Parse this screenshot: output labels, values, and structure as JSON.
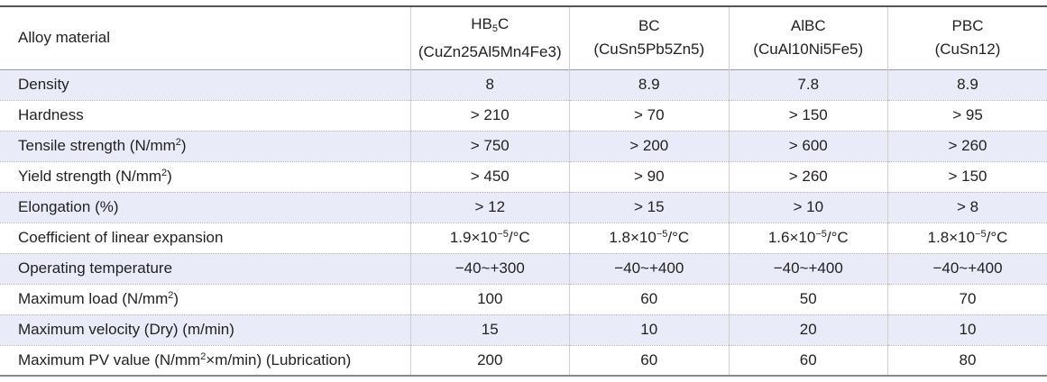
{
  "table": {
    "header": [
      "Alloy material",
      {
        "name": [
          {
            "text": "HB"
          },
          {
            "text": "5",
            "style": "sub"
          },
          {
            "text": "C"
          }
        ],
        "composition": "(CuZn25Al5Mn4Fe3)"
      },
      {
        "name": "BC",
        "composition": "(CuSn5Pb5Zn5)"
      },
      {
        "name": "AlBC",
        "composition": "(CuAl10Ni5Fe5)"
      },
      {
        "name": "PBC",
        "composition": "(CuSn12)"
      }
    ],
    "rows": [
      [
        "Density",
        "8",
        "8.9",
        "7.8",
        "8.9"
      ],
      [
        "Hardness",
        "> 210",
        "> 70",
        "> 150",
        "> 95"
      ],
      [
        [
          {
            "text": "Tensile strength (N/mm"
          },
          {
            "text": "2",
            "style": "sup"
          },
          {
            "text": ")"
          }
        ],
        "> 750",
        "> 200",
        "> 600",
        "> 260"
      ],
      [
        [
          {
            "text": "Yield strength (N/mm"
          },
          {
            "text": "2",
            "style": "sup"
          },
          {
            "text": ")"
          }
        ],
        "> 450",
        "> 90",
        "> 260",
        "> 150"
      ],
      [
        "Elongation (%)",
        "> 12",
        "> 15",
        "> 10",
        "> 8"
      ],
      [
        "Coefficient of linear expansion",
        [
          {
            "text": "1.9×10"
          },
          {
            "text": "−5",
            "style": "sup"
          },
          {
            "text": "/°C"
          }
        ],
        [
          {
            "text": "1.8×10"
          },
          {
            "text": "−5",
            "style": "sup"
          },
          {
            "text": "/°C"
          }
        ],
        [
          {
            "text": "1.6×10"
          },
          {
            "text": "−5",
            "style": "sup"
          },
          {
            "text": "/°C"
          }
        ],
        [
          {
            "text": "1.8×10"
          },
          {
            "text": "−5",
            "style": "sup"
          },
          {
            "text": "/°C"
          }
        ]
      ],
      [
        "Operating temperature",
        "−40~+300",
        "−40~+400",
        "−40~+400",
        "−40~+400"
      ],
      [
        [
          {
            "text": "Maximum load (N/mm"
          },
          {
            "text": "2",
            "style": "sup"
          },
          {
            "text": ")"
          }
        ],
        "100",
        "60",
        "50",
        "70"
      ],
      [
        "Maximum velocity (Dry) (m/min)",
        "15",
        "10",
        "20",
        "10"
      ],
      [
        [
          {
            "text": "Maximum PV value (N/mm"
          },
          {
            "text": "2",
            "style": "sup"
          },
          {
            "text": "×m/min) (Lubrication)"
          }
        ],
        "200",
        "60",
        "60",
        "80"
      ]
    ]
  }
}
